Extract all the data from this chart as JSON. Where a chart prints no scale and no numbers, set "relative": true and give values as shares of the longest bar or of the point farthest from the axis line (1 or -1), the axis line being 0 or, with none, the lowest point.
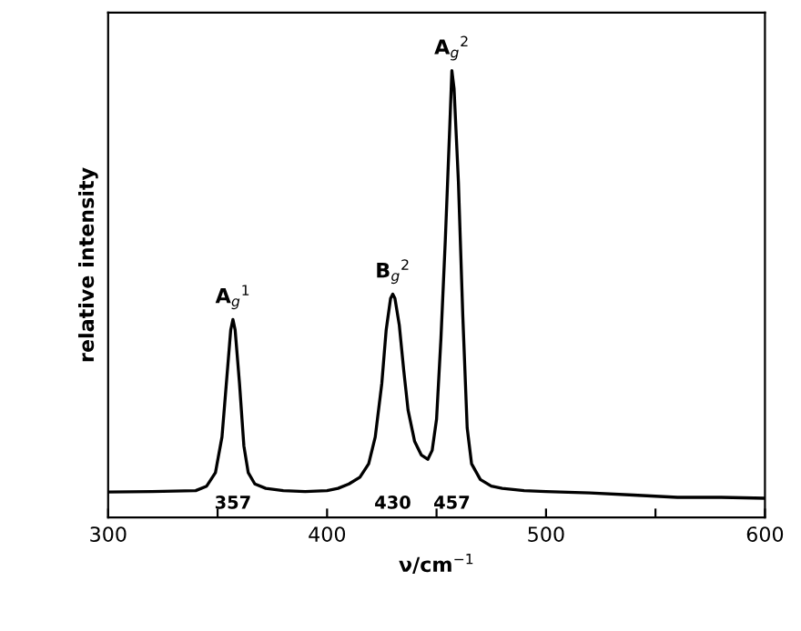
{
  "chart_data": {
    "type": "line",
    "relative": true,
    "xlabel": "ν/cm$^{−1}$",
    "ylabel": "relative intensity",
    "xlim": [
      300,
      600
    ],
    "xticks": [
      300,
      {
        "value": 350,
        "label": null
      },
      400,
      {
        "value": 450,
        "label": null
      },
      500,
      {
        "value": 550,
        "label": null
      },
      600
    ],
    "tick_labels": "x",
    "grid": false,
    "legend": false,
    "marker": "none",
    "line_style": "solid",
    "series": [
      {
        "color": "#000000",
        "x": [
          300,
          320,
          340,
          345,
          349,
          352,
          354,
          356,
          357,
          358,
          360,
          362,
          364,
          367,
          372,
          380,
          390,
          400,
          405,
          410,
          415,
          419,
          422,
          425,
          427,
          429,
          430,
          431,
          433,
          435,
          437,
          440,
          443,
          446,
          448,
          450,
          452,
          454,
          456,
          457,
          458,
          460,
          462,
          464,
          466,
          470,
          475,
          480,
          490,
          500,
          520,
          540,
          560,
          580,
          600
        ],
        "values": [
          0.057,
          0.058,
          0.06,
          0.07,
          0.1,
          0.18,
          0.3,
          0.42,
          0.443,
          0.42,
          0.3,
          0.16,
          0.1,
          0.075,
          0.065,
          0.06,
          0.058,
          0.06,
          0.065,
          0.075,
          0.09,
          0.12,
          0.18,
          0.3,
          0.42,
          0.49,
          0.5,
          0.49,
          0.43,
          0.33,
          0.24,
          0.17,
          0.14,
          0.13,
          0.15,
          0.22,
          0.4,
          0.62,
          0.87,
          1.0,
          0.96,
          0.75,
          0.45,
          0.2,
          0.12,
          0.085,
          0.07,
          0.065,
          0.06,
          0.058,
          0.055,
          0.05,
          0.045,
          0.045,
          0.043
        ]
      }
    ],
    "annotations": [
      {
        "text": "A$_{g}$$^{1}$",
        "x": 357,
        "y": 0.443
      },
      {
        "text": "B$_{g}$$^{2}$",
        "x": 430,
        "y": 0.5
      },
      {
        "text": "A$_{g}$$^{2}$",
        "x": 457,
        "y": 1.0
      },
      "357",
      "430",
      "457"
    ]
  }
}
